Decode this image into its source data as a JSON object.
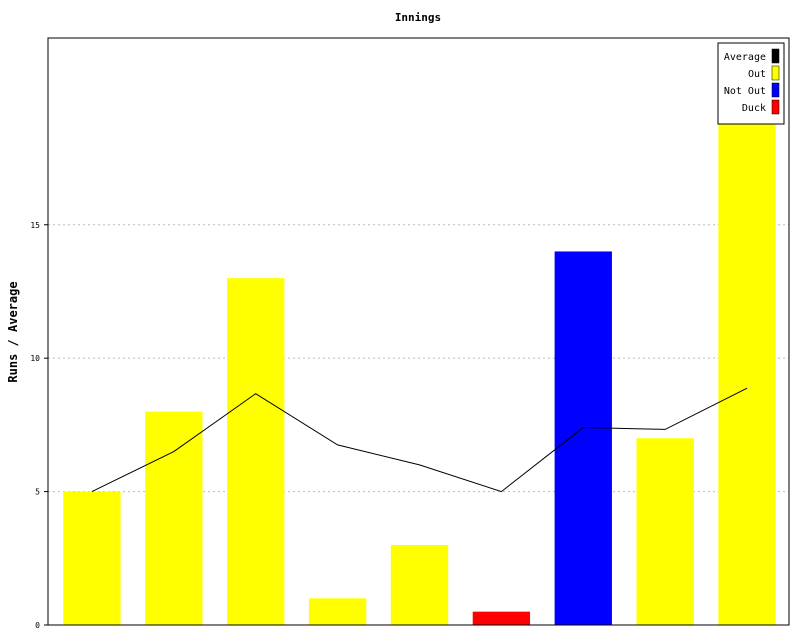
{
  "chart_data": {
    "type": "bar",
    "title": "Innings",
    "xlabel": "",
    "ylabel": "Runs / Average",
    "ylim": [
      0,
      22
    ],
    "yticks": [
      0,
      5,
      10,
      15
    ],
    "y_tick_labels": [
      "0",
      "5",
      "10",
      "15"
    ],
    "grid": true,
    "legend_position": "top-right",
    "legend": [
      {
        "label": "Average",
        "color": "#000000"
      },
      {
        "label": "Out",
        "color": "#ffff00"
      },
      {
        "label": "Not Out",
        "color": "#0000ff"
      },
      {
        "label": "Duck",
        "color": "#ff0000"
      }
    ],
    "series": [
      {
        "name": "Runs",
        "type": "bar",
        "values": [
          5,
          8,
          13,
          1,
          3,
          0.5,
          14,
          7,
          19
        ],
        "status": [
          "Out",
          "Out",
          "Out",
          "Out",
          "Out",
          "Duck",
          "Not Out",
          "Out",
          "Out"
        ]
      },
      {
        "name": "Average",
        "type": "line",
        "values": [
          5,
          6.5,
          8.67,
          6.75,
          6,
          5,
          7.4,
          7.33,
          8.875
        ]
      }
    ]
  }
}
